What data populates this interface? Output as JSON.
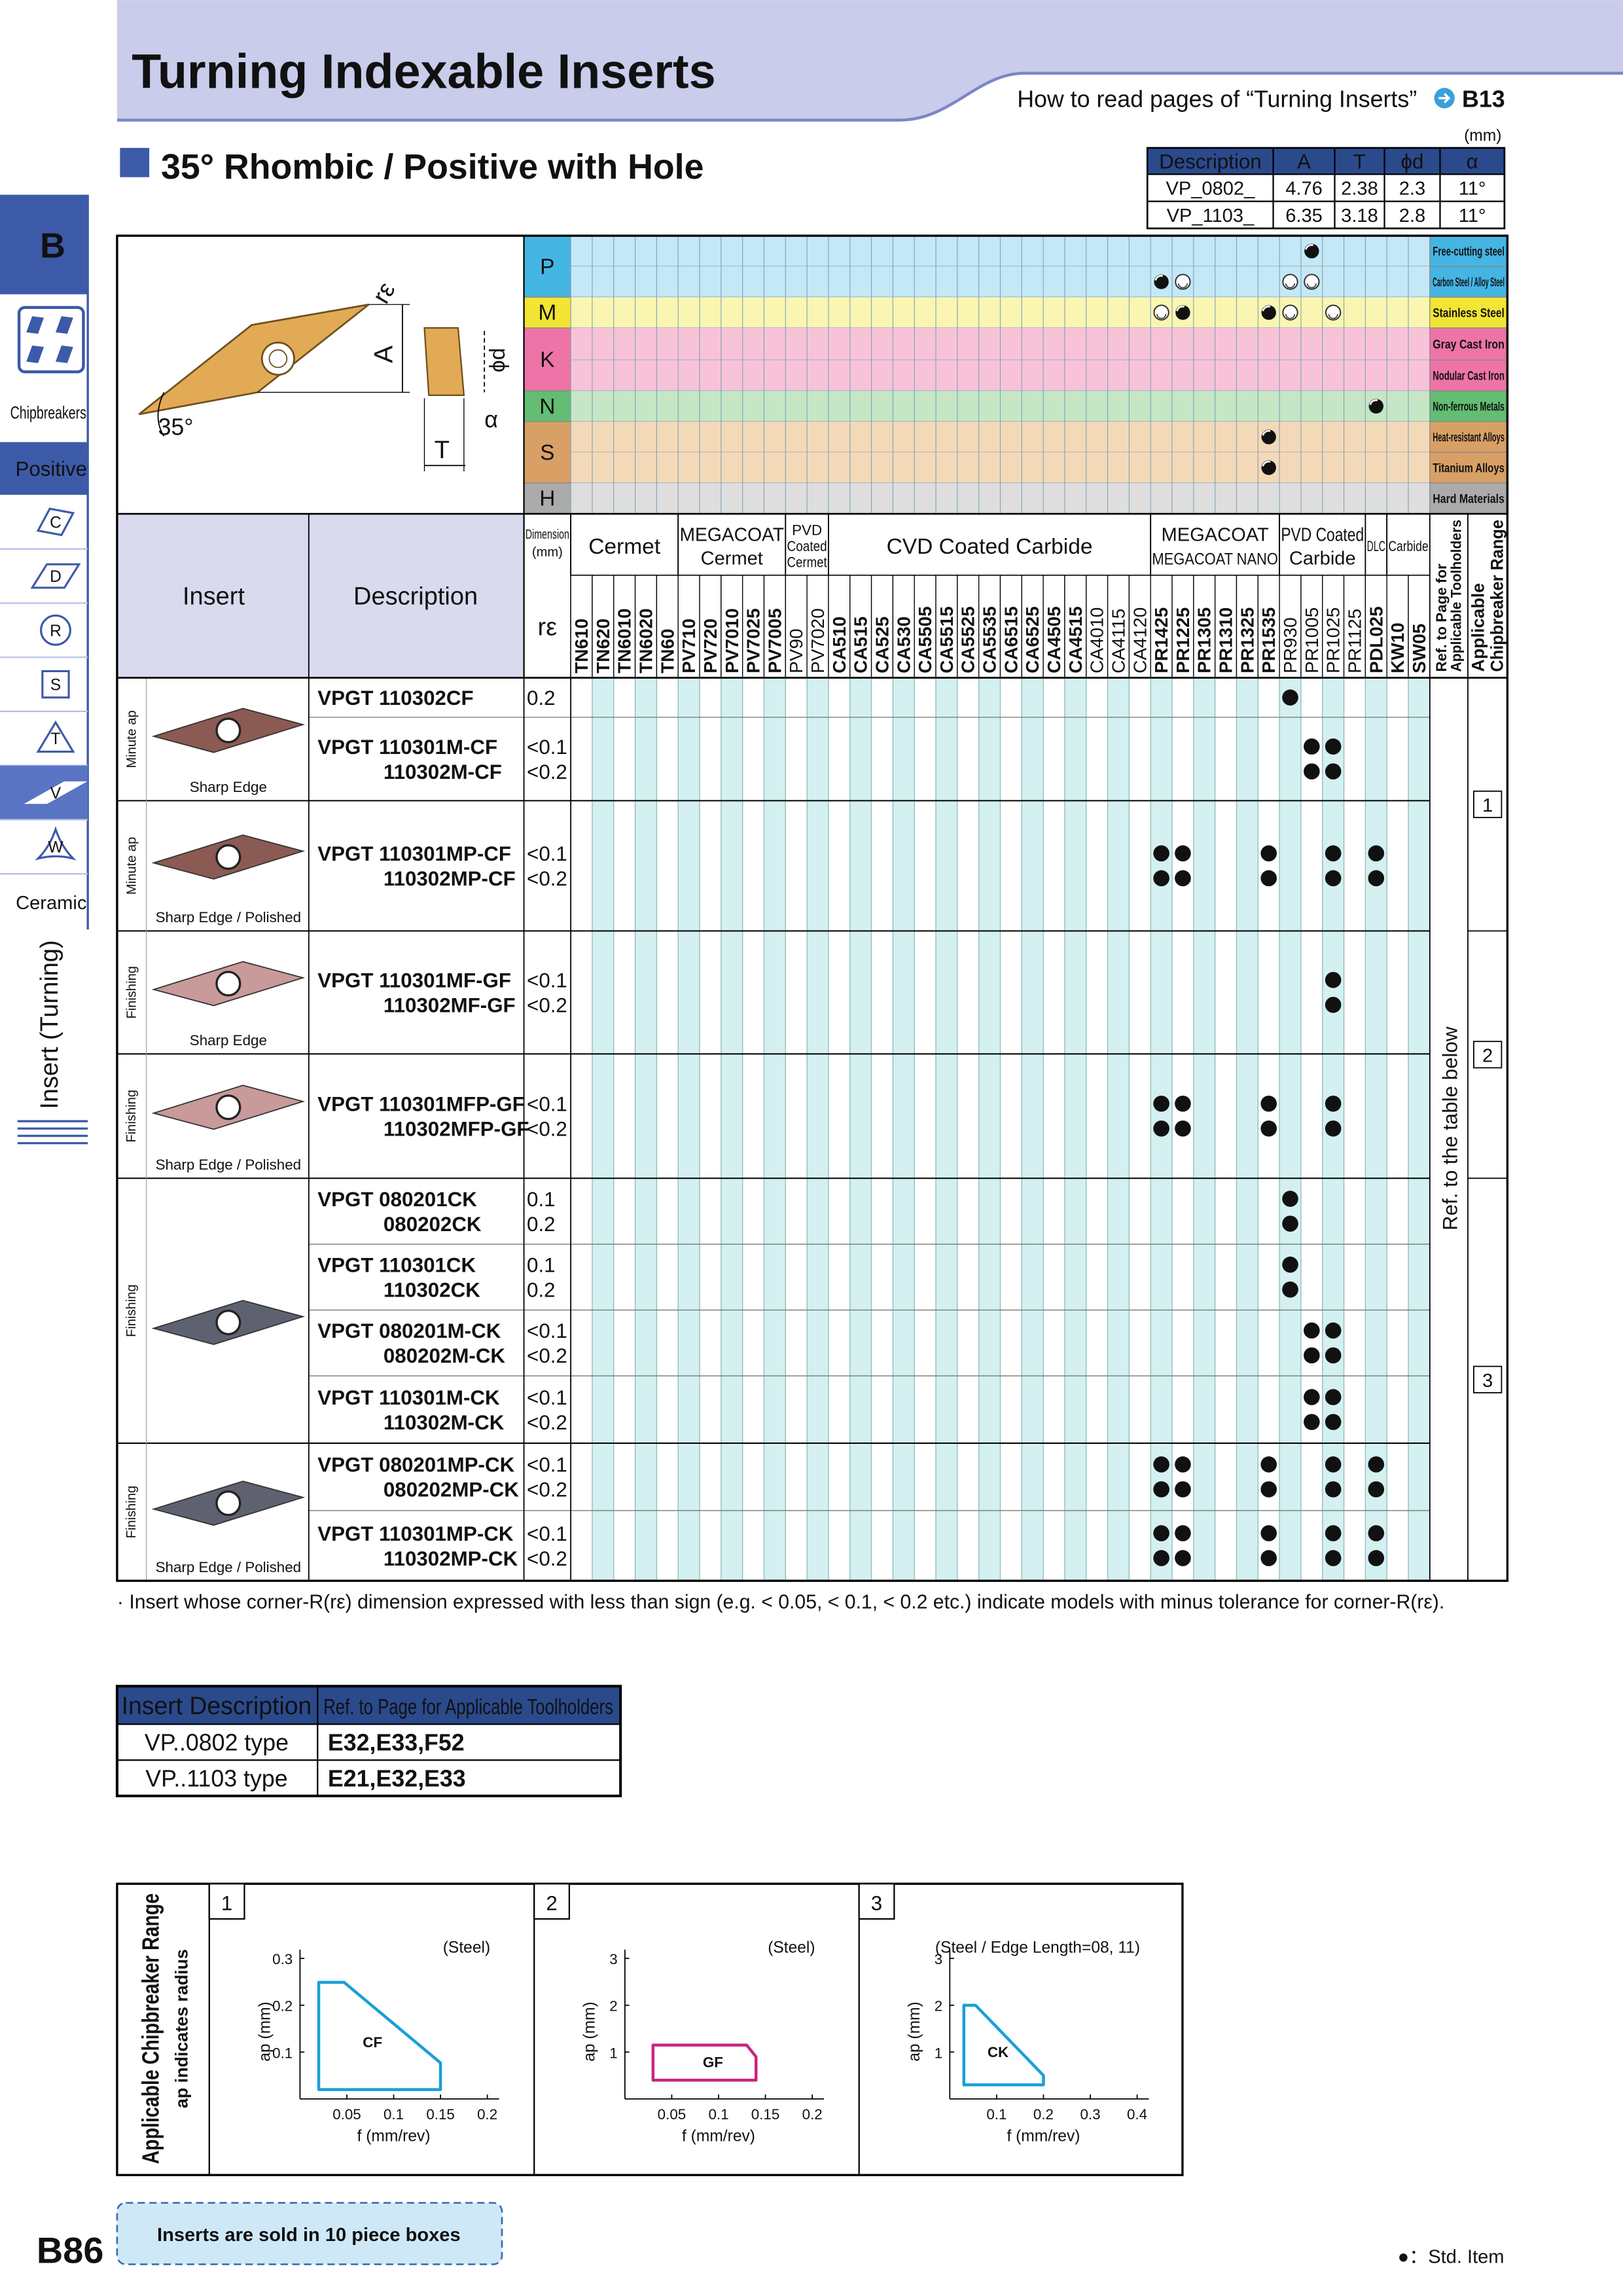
{
  "header": {
    "title": "Turning Indexable Inserts",
    "how_to_read": "How to read pages of “Turning Inserts”",
    "page_ref": "B13"
  },
  "sidebar": {
    "tab": "B",
    "chipbreakers": "Chipbreakers",
    "positive": "Positive",
    "shapes": [
      "C",
      "D",
      "R",
      "S",
      "T",
      "V",
      "W"
    ],
    "ceramic": "Ceramic",
    "section": "Insert (Turning)"
  },
  "section_title": "35° Rhombic / Positive with Hole",
  "dimension_table": {
    "unit": "(mm)",
    "headers": [
      "Description",
      "A",
      "T",
      "ϕd",
      "α"
    ],
    "rows": [
      [
        "VP_0802_",
        "4.76",
        "2.38",
        "2.3",
        "11°"
      ],
      [
        "VP_1103_",
        "6.35",
        "3.18",
        "2.8",
        "11°"
      ]
    ]
  },
  "diagram": {
    "corner": "rε",
    "a": "A",
    "hole": "ϕd",
    "angle": "α",
    "tip": "35°",
    "thickness": "T"
  },
  "materials": [
    {
      "letter": "P",
      "color": "#c4e8f6",
      "letter_color": "#45b5e4",
      "rows": [
        {
          "name": "Free-cutting steel",
          "first": [
            "PR1005"
          ]
        },
        {
          "name": "Carbon Steel / Alloy Steel",
          "first": [
            "PR1425"
          ],
          "second": [
            "PR1225",
            "PR930",
            "PR1005"
          ]
        }
      ]
    },
    {
      "letter": "M",
      "color": "#fbf5b2",
      "letter_color": "#f2e533",
      "rows": [
        {
          "name": "Stainless Steel",
          "first": [
            "PR1225",
            "PR1535"
          ],
          "second": [
            "PR1425",
            "PR930",
            "PR1025"
          ]
        }
      ]
    },
    {
      "letter": "K",
      "color": "#f8c3d9",
      "letter_color": "#ee74a8",
      "rows": [
        {
          "name": "Gray Cast Iron"
        },
        {
          "name": "Nodular Cast Iron"
        }
      ]
    },
    {
      "letter": "N",
      "color": "#c6e6c6",
      "letter_color": "#63bd72",
      "rows": [
        {
          "name": "Non-ferrous Metals",
          "first": [
            "PDL025"
          ]
        }
      ]
    },
    {
      "letter": "S",
      "color": "#f4d9b8",
      "letter_color": "#d9a066",
      "rows": [
        {
          "name": "Heat-resistant Alloys",
          "first": [
            "PR1535"
          ]
        },
        {
          "name": "Titanium Alloys",
          "first": [
            "PR1535"
          ]
        }
      ]
    },
    {
      "letter": "H",
      "color": "#dedede",
      "letter_color": "#ababab",
      "rows": [
        {
          "name": "Hard Materials"
        }
      ]
    }
  ],
  "table_header": {
    "insert": "Insert",
    "description": "Description",
    "dimension": [
      "Dimension",
      "(mm)"
    ],
    "corner": "rε",
    "ref_toolholders": [
      "Ref. to Page for",
      "Applicable Toolholders"
    ],
    "chipbreaker_range": [
      "Applicable",
      "Chipbreaker Range"
    ]
  },
  "grade_groups": [
    {
      "name": [
        "Cermet"
      ],
      "grades": [
        {
          "name": "TN610",
          "color": "#e3241b"
        },
        {
          "name": "TN620",
          "color": "#e3241b"
        },
        {
          "name": "TN6010",
          "color": "#111111"
        },
        {
          "name": "TN6020",
          "color": "#111111"
        },
        {
          "name": "TN60",
          "color": "#111111"
        }
      ]
    },
    {
      "name": [
        "MEGACOAT",
        "Cermet"
      ],
      "grades": [
        {
          "name": "PV710",
          "color": "#e3241b"
        },
        {
          "name": "PV720",
          "color": "#e3241b"
        },
        {
          "name": "PV7010",
          "color": "#111111"
        },
        {
          "name": "PV7025",
          "color": "#111111"
        },
        {
          "name": "PV7005",
          "color": "#111111"
        }
      ]
    },
    {
      "name": [
        "PVD",
        "Coated",
        "Cermet"
      ],
      "grades": [
        {
          "name": "PV90",
          "color": "#444444"
        },
        {
          "name": "PV7020",
          "color": "#444444"
        }
      ]
    },
    {
      "name": [
        "CVD Coated Carbide"
      ],
      "grades": [
        {
          "name": "CA510",
          "color": "#e3241b"
        },
        {
          "name": "CA515",
          "color": "#e3241b"
        },
        {
          "name": "CA525",
          "color": "#e3241b"
        },
        {
          "name": "CA530",
          "color": "#e3241b"
        },
        {
          "name": "CA5505",
          "color": "#111111"
        },
        {
          "name": "CA5515",
          "color": "#111111"
        },
        {
          "name": "CA5525",
          "color": "#111111"
        },
        {
          "name": "CA5535",
          "color": "#111111"
        },
        {
          "name": "CA6515",
          "color": "#111111"
        },
        {
          "name": "CA6525",
          "color": "#111111"
        },
        {
          "name": "CA4505",
          "color": "#111111"
        },
        {
          "name": "CA4515",
          "color": "#111111"
        },
        {
          "name": "CA4010",
          "color": "#444444"
        },
        {
          "name": "CA4115",
          "color": "#444444"
        },
        {
          "name": "CA4120",
          "color": "#444444"
        }
      ]
    },
    {
      "name": [
        "MEGACOAT",
        "MEGACOAT NANO"
      ],
      "grades": [
        {
          "name": "PR1425",
          "color": "#111111"
        },
        {
          "name": "PR1225",
          "color": "#111111"
        },
        {
          "name": "PR1305",
          "color": "#111111"
        },
        {
          "name": "PR1310",
          "color": "#111111"
        },
        {
          "name": "PR1325",
          "color": "#111111"
        },
        {
          "name": "PR1535",
          "color": "#e3241b"
        }
      ]
    },
    {
      "name": [
        "PVD Coated",
        "Carbide"
      ],
      "grades": [
        {
          "name": "PR930",
          "color": "#444444"
        },
        {
          "name": "PR1005",
          "color": "#444444"
        },
        {
          "name": "PR1025",
          "color": "#444444"
        },
        {
          "name": "PR1125",
          "color": "#444444"
        }
      ]
    },
    {
      "name": [
        "DLC"
      ],
      "grades": [
        {
          "name": "PDL025",
          "color": "#e3241b"
        }
      ]
    },
    {
      "name": [
        "Carbide"
      ],
      "grades": [
        {
          "name": "KW10",
          "color": "#111111"
        },
        {
          "name": "SW05",
          "color": "#111111"
        }
      ]
    }
  ],
  "insert_groups": [
    {
      "label": "Minute ap",
      "caption": "Sharp Edge",
      "rows": [
        {
          "lines": [
            {
              "description": "VPGT 110302CF",
              "corner": "0.2",
              "stock": [
                "PR930"
              ]
            }
          ]
        },
        {
          "lines": [
            {
              "description": "VPGT 110301M-CF",
              "corner": "<0.1",
              "stock": [
                "PR1005",
                "PR1025"
              ]
            },
            {
              "description": "110302M-CF",
              "corner": "<0.2",
              "stock": [
                "PR1005",
                "PR1025"
              ]
            }
          ]
        }
      ]
    },
    {
      "label": "Minute ap",
      "caption": "Sharp Edge / Polished",
      "rows": [
        {
          "lines": [
            {
              "description": "VPGT 110301MP-CF",
              "corner": "<0.1",
              "stock": [
                "PR1425",
                "PR1225",
                "PR1535",
                "PR1025",
                "PDL025"
              ]
            },
            {
              "description": "110302MP-CF",
              "corner": "<0.2",
              "stock": [
                "PR1425",
                "PR1225",
                "PR1535",
                "PR1025",
                "PDL025"
              ]
            }
          ]
        }
      ]
    },
    {
      "label": "Finishing",
      "caption": "Sharp Edge",
      "rows": [
        {
          "lines": [
            {
              "description": "VPGT 110301MF-GF",
              "corner": "<0.1",
              "stock": [
                "PR1025"
              ]
            },
            {
              "description": "110302MF-GF",
              "corner": "<0.2",
              "stock": [
                "PR1025"
              ]
            }
          ]
        }
      ]
    },
    {
      "label": "Finishing",
      "caption": "Sharp Edge / Polished",
      "rows": [
        {
          "lines": [
            {
              "description": "VPGT 110301MFP-GF",
              "corner": "<0.1",
              "stock": [
                "PR1425",
                "PR1225",
                "PR1535",
                "PR1025"
              ]
            },
            {
              "description": "110302MFP-GF",
              "corner": "<0.2",
              "stock": [
                "PR1425",
                "PR1225",
                "PR1535",
                "PR1025"
              ]
            }
          ]
        }
      ]
    },
    {
      "label": "Finishing",
      "rows": [
        {
          "lines": [
            {
              "description": "VPGT 080201CK",
              "corner": "0.1",
              "stock": [
                "PR930"
              ]
            },
            {
              "description": "080202CK",
              "corner": "0.2",
              "stock": [
                "PR930"
              ]
            }
          ]
        },
        {
          "lines": [
            {
              "description": "VPGT 110301CK",
              "corner": "0.1",
              "stock": [
                "PR930"
              ]
            },
            {
              "description": "110302CK",
              "corner": "0.2",
              "stock": [
                "PR930"
              ]
            }
          ]
        },
        {
          "lines": [
            {
              "description": "VPGT 080201M-CK",
              "corner": "<0.1",
              "stock": [
                "PR1005",
                "PR1025"
              ]
            },
            {
              "description": "080202M-CK",
              "corner": "<0.2",
              "stock": [
                "PR1005",
                "PR1025"
              ]
            }
          ]
        },
        {
          "lines": [
            {
              "description": "VPGT 110301M-CK",
              "corner": "<0.1",
              "stock": [
                "PR1005",
                "PR1025"
              ]
            },
            {
              "description": "110302M-CK",
              "corner": "<0.2",
              "stock": [
                "PR1005",
                "PR1025"
              ]
            }
          ]
        }
      ]
    },
    {
      "label": "Finishing",
      "caption": "Sharp Edge / Polished",
      "rows": [
        {
          "lines": [
            {
              "description": "VPGT 080201MP-CK",
              "corner": "<0.1",
              "stock": [
                "PR1425",
                "PR1225",
                "PR1535",
                "PR1025",
                "PDL025"
              ]
            },
            {
              "description": "080202MP-CK",
              "corner": "<0.2",
              "stock": [
                "PR1425",
                "PR1225",
                "PR1535",
                "PR1025",
                "PDL025"
              ]
            }
          ]
        },
        {
          "lines": [
            {
              "description": "VPGT 110301MP-CK",
              "corner": "<0.1",
              "stock": [
                "PR1425",
                "PR1225",
                "PR1535",
                "PR1025",
                "PDL025"
              ]
            },
            {
              "description": "110302MP-CK",
              "corner": "<0.2",
              "stock": [
                "PR1425",
                "PR1225",
                "PR1535",
                "PR1025",
                "PDL025"
              ]
            }
          ]
        }
      ]
    }
  ],
  "ref_note": "Ref. to the table below",
  "chipbreaker_refs": [
    "1",
    "2",
    "3"
  ],
  "footnote": "· Insert whose corner-R(rε) dimension expressed with less than sign (e.g. < 0.05, < 0.1, < 0.2 etc.) indicate models with minus tolerance for corner-R(rε).",
  "toolholder_table": {
    "headers": [
      "Insert Description",
      "Ref. to Page for Applicable Toolholders"
    ],
    "rows": [
      [
        "VP..0802 type",
        "E32,E33,F52"
      ],
      [
        "VP..1103 type",
        "E21,E32,E33"
      ]
    ]
  },
  "chipbreaker_range": {
    "title": "Applicable Chipbreaker Range",
    "subtitle": "ap indicates radius",
    "charts": [
      {
        "type": "area",
        "number": "1",
        "note": "(Steel)",
        "x_label": "f (mm/rev)",
        "y_label": "ap (mm)",
        "xlim": [
          0,
          0.2
        ],
        "ylim": [
          0,
          0.3
        ],
        "xticks": [
          0.05,
          0.1,
          0.15,
          0.2
        ],
        "yticks": [
          0.1,
          0.2,
          0.3
        ],
        "series": [
          {
            "name": "CF",
            "color": "#1a9fd6",
            "x": [
              0.02,
              0.02,
              0.047,
              0.15,
              0.15
            ],
            "values": [
              0.02,
              0.249,
              0.249,
              0.077,
              0.02
            ]
          }
        ]
      },
      {
        "type": "area",
        "number": "2",
        "note": "(Steel)",
        "x_label": "f (mm/rev)",
        "y_label": "ap (mm)",
        "xlim": [
          0,
          0.2
        ],
        "ylim": [
          0,
          3
        ],
        "xticks": [
          0.05,
          0.1,
          0.15,
          0.2
        ],
        "yticks": [
          1,
          2,
          3
        ],
        "series": [
          {
            "name": "GF",
            "color": "#c8267c",
            "x": [
              0.03,
              0.03,
              0.13,
              0.14,
              0.14
            ],
            "values": [
              0.4,
              1.15,
              1.15,
              0.9,
              0.4
            ]
          }
        ]
      },
      {
        "type": "area",
        "number": "3",
        "note": "(Steel / Edge Length=08, 11)",
        "x_label": "f (mm/rev)",
        "y_label": "ap (mm)",
        "xlim": [
          0,
          0.4
        ],
        "ylim": [
          0,
          3
        ],
        "xticks": [
          0.1,
          0.2,
          0.3,
          0.4
        ],
        "yticks": [
          1,
          2,
          3
        ],
        "series": [
          {
            "name": "CK",
            "color": "#1a9fd6",
            "x": [
              0.03,
              0.03,
              0.055,
              0.2,
              0.2
            ],
            "values": [
              0.3,
              2.0,
              2.0,
              0.5,
              0.3
            ]
          }
        ]
      }
    ]
  },
  "footer": {
    "page": "B86",
    "box_note": "Inserts are sold in 10 piece boxes",
    "legend": "●：Std. Item"
  }
}
